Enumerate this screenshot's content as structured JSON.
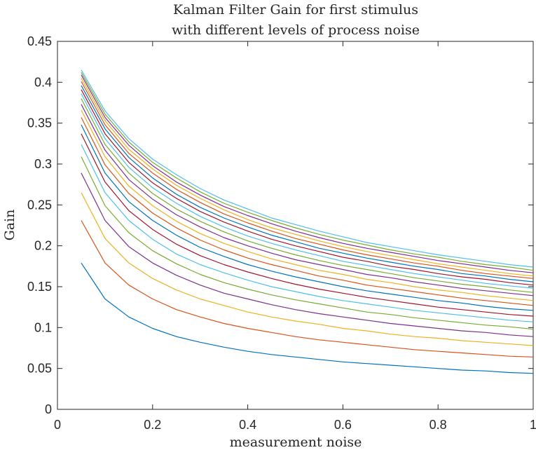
{
  "chart_data": {
    "type": "line",
    "title": [
      "Kalman Filter Gain for first stimulus",
      "with different levels of process noise"
    ],
    "xlabel": "measurement noise",
    "ylabel": "Gain",
    "xlim": [
      0,
      1
    ],
    "ylim": [
      0,
      0.45
    ],
    "xticks": [
      "0",
      "0.2",
      "0.4",
      "0.6",
      "0.8",
      "1"
    ],
    "yticks": [
      "0",
      "0.05",
      "0.1",
      "0.15",
      "0.2",
      "0.25",
      "0.3",
      "0.35",
      "0.4",
      "0.45"
    ],
    "grid": false,
    "x": [
      0.05,
      0.1,
      0.15,
      0.2,
      0.25,
      0.3,
      0.35,
      0.4,
      0.45,
      0.5,
      0.55,
      0.6,
      0.65,
      0.7,
      0.75,
      0.8,
      0.85,
      0.9,
      0.95,
      1.0
    ],
    "series": [
      {
        "color": "#0072BD",
        "values": [
          0.179,
          0.135,
          0.113,
          0.099,
          0.089,
          0.082,
          0.076,
          0.071,
          0.067,
          0.064,
          0.061,
          0.058,
          0.056,
          0.054,
          0.052,
          0.05,
          0.048,
          0.047,
          0.045,
          0.044
        ]
      },
      {
        "color": "#D95319",
        "values": [
          0.231,
          0.179,
          0.152,
          0.135,
          0.122,
          0.113,
          0.105,
          0.099,
          0.094,
          0.089,
          0.085,
          0.082,
          0.079,
          0.076,
          0.073,
          0.071,
          0.069,
          0.067,
          0.065,
          0.064
        ]
      },
      {
        "color": "#EDB120",
        "values": [
          0.265,
          0.209,
          0.179,
          0.16,
          0.146,
          0.135,
          0.127,
          0.119,
          0.113,
          0.108,
          0.104,
          0.099,
          0.096,
          0.092,
          0.089,
          0.087,
          0.084,
          0.082,
          0.08,
          0.078
        ]
      },
      {
        "color": "#7E2F8E",
        "values": [
          0.289,
          0.231,
          0.199,
          0.179,
          0.164,
          0.152,
          0.142,
          0.135,
          0.128,
          0.122,
          0.117,
          0.113,
          0.109,
          0.105,
          0.102,
          0.099,
          0.096,
          0.094,
          0.091,
          0.089
        ]
      },
      {
        "color": "#77AC30",
        "values": [
          0.309,
          0.249,
          0.216,
          0.194,
          0.178,
          0.165,
          0.155,
          0.147,
          0.14,
          0.134,
          0.129,
          0.124,
          0.119,
          0.116,
          0.112,
          0.109,
          0.106,
          0.103,
          0.101,
          0.098
        ]
      },
      {
        "color": "#4DBEEE",
        "values": [
          0.324,
          0.265,
          0.231,
          0.208,
          0.19,
          0.177,
          0.167,
          0.158,
          0.15,
          0.144,
          0.138,
          0.133,
          0.129,
          0.125,
          0.121,
          0.118,
          0.115,
          0.112,
          0.109,
          0.107
        ]
      },
      {
        "color": "#A2142F",
        "values": [
          0.337,
          0.278,
          0.243,
          0.22,
          0.202,
          0.188,
          0.177,
          0.168,
          0.16,
          0.153,
          0.147,
          0.142,
          0.137,
          0.133,
          0.129,
          0.125,
          0.122,
          0.119,
          0.116,
          0.114
        ]
      },
      {
        "color": "#0072BD",
        "values": [
          0.348,
          0.289,
          0.254,
          0.231,
          0.213,
          0.198,
          0.187,
          0.177,
          0.169,
          0.162,
          0.156,
          0.15,
          0.145,
          0.141,
          0.137,
          0.133,
          0.13,
          0.126,
          0.123,
          0.121
        ]
      },
      {
        "color": "#D95319",
        "values": [
          0.357,
          0.299,
          0.264,
          0.24,
          0.222,
          0.207,
          0.195,
          0.185,
          0.177,
          0.17,
          0.163,
          0.158,
          0.152,
          0.148,
          0.144,
          0.14,
          0.136,
          0.133,
          0.13,
          0.127
        ]
      },
      {
        "color": "#EDB120",
        "values": [
          0.366,
          0.309,
          0.273,
          0.249,
          0.23,
          0.215,
          0.203,
          0.193,
          0.184,
          0.177,
          0.17,
          0.165,
          0.159,
          0.155,
          0.15,
          0.146,
          0.143,
          0.139,
          0.136,
          0.133
        ]
      },
      {
        "color": "#7E2F8E",
        "values": [
          0.373,
          0.317,
          0.281,
          0.257,
          0.238,
          0.223,
          0.21,
          0.2,
          0.191,
          0.183,
          0.177,
          0.171,
          0.165,
          0.161,
          0.156,
          0.152,
          0.148,
          0.145,
          0.142,
          0.139
        ]
      },
      {
        "color": "#77AC30",
        "values": [
          0.38,
          0.324,
          0.289,
          0.264,
          0.245,
          0.23,
          0.217,
          0.206,
          0.197,
          0.189,
          0.182,
          0.176,
          0.171,
          0.166,
          0.161,
          0.157,
          0.153,
          0.15,
          0.146,
          0.143
        ]
      },
      {
        "color": "#4DBEEE",
        "values": [
          0.386,
          0.331,
          0.296,
          0.271,
          0.252,
          0.236,
          0.223,
          0.212,
          0.203,
          0.195,
          0.188,
          0.181,
          0.176,
          0.171,
          0.166,
          0.162,
          0.158,
          0.154,
          0.151,
          0.148
        ]
      },
      {
        "color": "#A2142F",
        "values": [
          0.391,
          0.337,
          0.302,
          0.277,
          0.258,
          0.242,
          0.229,
          0.218,
          0.208,
          0.2,
          0.193,
          0.186,
          0.181,
          0.175,
          0.171,
          0.166,
          0.162,
          0.159,
          0.155,
          0.152
        ]
      },
      {
        "color": "#0072BD",
        "values": [
          0.396,
          0.343,
          0.308,
          0.283,
          0.263,
          0.247,
          0.234,
          0.223,
          0.213,
          0.205,
          0.197,
          0.191,
          0.185,
          0.18,
          0.175,
          0.171,
          0.166,
          0.163,
          0.159,
          0.156
        ]
      },
      {
        "color": "#D95319",
        "values": [
          0.401,
          0.348,
          0.313,
          0.289,
          0.269,
          0.253,
          0.239,
          0.228,
          0.218,
          0.209,
          0.202,
          0.195,
          0.189,
          0.184,
          0.179,
          0.175,
          0.17,
          0.166,
          0.163,
          0.16
        ]
      },
      {
        "color": "#EDB120",
        "values": [
          0.405,
          0.353,
          0.318,
          0.294,
          0.274,
          0.258,
          0.244,
          0.232,
          0.222,
          0.214,
          0.206,
          0.199,
          0.193,
          0.188,
          0.183,
          0.178,
          0.174,
          0.17,
          0.166,
          0.163
        ]
      },
      {
        "color": "#7E2F8E",
        "values": [
          0.409,
          0.357,
          0.323,
          0.298,
          0.278,
          0.262,
          0.248,
          0.237,
          0.227,
          0.218,
          0.21,
          0.203,
          0.197,
          0.192,
          0.187,
          0.182,
          0.178,
          0.174,
          0.17,
          0.167
        ]
      },
      {
        "color": "#77AC30",
        "values": [
          0.412,
          0.361,
          0.327,
          0.302,
          0.283,
          0.266,
          0.252,
          0.241,
          0.231,
          0.222,
          0.214,
          0.207,
          0.201,
          0.195,
          0.19,
          0.186,
          0.181,
          0.177,
          0.174,
          0.17
        ]
      },
      {
        "color": "#4DBEEE",
        "values": [
          0.415,
          0.365,
          0.331,
          0.306,
          0.287,
          0.27,
          0.256,
          0.245,
          0.234,
          0.226,
          0.218,
          0.211,
          0.204,
          0.199,
          0.194,
          0.189,
          0.185,
          0.181,
          0.177,
          0.174
        ]
      }
    ]
  }
}
